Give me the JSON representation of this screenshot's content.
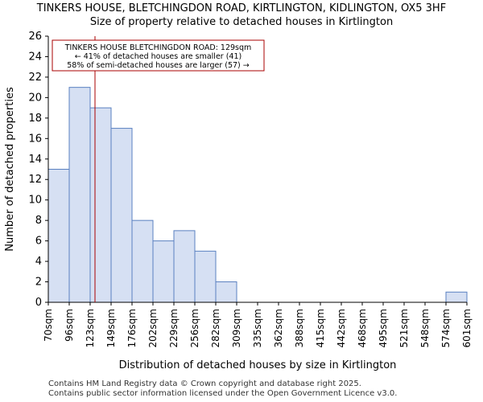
{
  "chart_data": {
    "type": "bar",
    "title": "TINKERS HOUSE, BLETCHINGDON ROAD, KIRTLINGTON, KIDLINGTON, OX5 3HF",
    "subtitle": "Size of property relative to detached houses in Kirtlington",
    "xlabel": "Distribution of detached houses by size in Kirtlington",
    "ylabel": "Number of detached properties",
    "bin_edges": [
      70,
      96,
      123,
      149,
      176,
      202,
      229,
      256,
      282,
      309,
      335,
      362,
      388,
      415,
      442,
      468,
      495,
      521,
      548,
      574,
      601
    ],
    "x_tick_labels": [
      "70sqm",
      "96sqm",
      "123sqm",
      "149sqm",
      "176sqm",
      "202sqm",
      "229sqm",
      "256sqm",
      "282sqm",
      "309sqm",
      "335sqm",
      "362sqm",
      "388sqm",
      "415sqm",
      "442sqm",
      "468sqm",
      "495sqm",
      "521sqm",
      "548sqm",
      "574sqm",
      "601sqm"
    ],
    "values": [
      13,
      21,
      19,
      17,
      8,
      6,
      7,
      5,
      2,
      0,
      0,
      0,
      0,
      0,
      0,
      0,
      0,
      0,
      0,
      1
    ],
    "ylim": [
      0,
      26
    ],
    "y_ticks": [
      0,
      2,
      4,
      6,
      8,
      10,
      12,
      14,
      16,
      18,
      20,
      22,
      24,
      26
    ],
    "grid": false,
    "marker_value": 129,
    "annotation": {
      "line1": "TINKERS HOUSE BLETCHINGDON ROAD: 129sqm",
      "line2": "← 41% of detached houses are smaller (41)",
      "line3": "58% of semi-detached houses are larger (57) →"
    },
    "colors": {
      "bar_fill": "#d6e0f3",
      "bar_stroke": "#5a80c0",
      "marker": "#aa0000",
      "axis": "#000000"
    }
  },
  "footer": {
    "line1": "Contains HM Land Registry data © Crown copyright and database right 2025.",
    "line2": "Contains public sector information licensed under the Open Government Licence v3.0."
  }
}
